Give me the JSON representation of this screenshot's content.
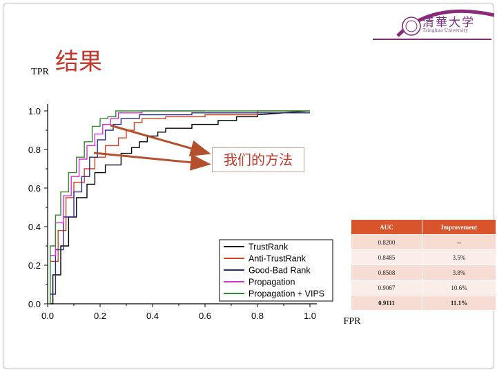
{
  "slide": {
    "title": "结果",
    "logo_cn": "清華大学",
    "logo_en": "Tsinghua University",
    "callout": "我们的方法"
  },
  "chart_data": {
    "type": "line",
    "xlabel": "FPR",
    "ylabel": "TPR",
    "xlim": [
      0,
      1.0
    ],
    "ylim": [
      0,
      1.0
    ],
    "xticks": [
      "0.0",
      "0.2",
      "0.4",
      "0.6",
      "0.8",
      "1.0"
    ],
    "yticks": [
      "0.0",
      "0.2",
      "0.4",
      "0.6",
      "0.8",
      "1.0"
    ],
    "legend_position": "bottom-right",
    "series": [
      {
        "name": "TrustRank",
        "color": "#000000",
        "x": [
          0,
          0.02,
          0.02,
          0.05,
          0.05,
          0.08,
          0.08,
          0.11,
          0.11,
          0.15,
          0.15,
          0.18,
          0.18,
          0.22,
          0.22,
          0.28,
          0.28,
          0.32,
          0.32,
          0.35,
          0.35,
          0.38,
          0.38,
          0.42,
          0.42,
          0.45,
          0.45,
          0.55,
          0.55,
          0.65,
          0.65,
          0.72,
          0.72,
          0.8,
          0.8,
          1.0
        ],
        "y": [
          0,
          0,
          0.15,
          0.15,
          0.3,
          0.3,
          0.45,
          0.45,
          0.55,
          0.55,
          0.62,
          0.62,
          0.68,
          0.68,
          0.72,
          0.72,
          0.78,
          0.78,
          0.81,
          0.81,
          0.84,
          0.84,
          0.87,
          0.87,
          0.89,
          0.89,
          0.91,
          0.91,
          0.93,
          0.93,
          0.95,
          0.95,
          0.97,
          0.97,
          0.98,
          1.0
        ]
      },
      {
        "name": "Anti-TrustRank",
        "color": "#d4401f",
        "x": [
          0,
          0.01,
          0.01,
          0.04,
          0.04,
          0.07,
          0.07,
          0.1,
          0.1,
          0.14,
          0.14,
          0.18,
          0.18,
          0.22,
          0.22,
          0.27,
          0.27,
          0.3,
          0.3,
          0.33,
          0.33,
          0.36,
          0.36,
          0.45,
          0.45,
          0.6,
          0.6,
          0.8,
          0.8,
          1.0
        ],
        "y": [
          0,
          0,
          0.22,
          0.22,
          0.38,
          0.38,
          0.55,
          0.55,
          0.63,
          0.63,
          0.7,
          0.7,
          0.76,
          0.76,
          0.82,
          0.82,
          0.86,
          0.86,
          0.9,
          0.9,
          0.94,
          0.94,
          0.96,
          0.96,
          0.97,
          0.97,
          0.98,
          0.98,
          1.0,
          1.0
        ]
      },
      {
        "name": "Good-Bad Rank",
        "color": "#2a2a8a",
        "x": [
          0,
          0.01,
          0.01,
          0.03,
          0.03,
          0.06,
          0.06,
          0.1,
          0.1,
          0.13,
          0.13,
          0.16,
          0.16,
          0.19,
          0.19,
          0.22,
          0.22,
          0.25,
          0.25,
          0.28,
          0.28,
          0.35,
          0.35,
          0.55,
          0.55,
          1.0
        ],
        "y": [
          0,
          0,
          0.05,
          0.05,
          0.28,
          0.28,
          0.45,
          0.45,
          0.58,
          0.58,
          0.66,
          0.66,
          0.76,
          0.76,
          0.85,
          0.85,
          0.9,
          0.9,
          0.93,
          0.93,
          0.96,
          0.96,
          0.98,
          0.98,
          0.99,
          0.99
        ]
      },
      {
        "name": "Propagation",
        "color": "#d42fd4",
        "x": [
          0,
          0.01,
          0.01,
          0.03,
          0.03,
          0.06,
          0.06,
          0.09,
          0.09,
          0.12,
          0.12,
          0.15,
          0.15,
          0.18,
          0.18,
          0.21,
          0.21,
          0.24,
          0.24,
          0.27,
          0.27,
          0.36,
          0.36,
          0.6,
          0.6
        ],
        "y": [
          0,
          0,
          0.25,
          0.25,
          0.42,
          0.42,
          0.56,
          0.56,
          0.66,
          0.66,
          0.75,
          0.75,
          0.82,
          0.82,
          0.88,
          0.88,
          0.93,
          0.93,
          0.96,
          0.96,
          0.99,
          0.99,
          1.0,
          1.0,
          1.0
        ]
      },
      {
        "name": "Propagation + VIPS",
        "color": "#2e8b2e",
        "x": [
          0,
          0.01,
          0.01,
          0.03,
          0.03,
          0.05,
          0.05,
          0.08,
          0.08,
          0.11,
          0.11,
          0.14,
          0.14,
          0.17,
          0.17,
          0.2,
          0.2,
          0.23,
          0.23,
          0.26,
          0.26,
          0.5,
          0.5,
          1.0
        ],
        "y": [
          0,
          0,
          0.3,
          0.3,
          0.46,
          0.46,
          0.58,
          0.58,
          0.68,
          0.68,
          0.76,
          0.76,
          0.84,
          0.84,
          0.92,
          0.92,
          0.96,
          0.96,
          0.97,
          0.97,
          1.0,
          1.0,
          1.0,
          1.0
        ]
      }
    ],
    "annotations": [
      "我们的方法"
    ]
  },
  "auc_table": {
    "headers": [
      "AUC",
      "Improvement"
    ],
    "rows": [
      [
        "0.8200",
        "--"
      ],
      [
        "0.8485",
        "3.5%"
      ],
      [
        "0.8508",
        "3.8%"
      ],
      [
        "0.9067",
        "10.6%"
      ],
      [
        "0.9111",
        "11.1%"
      ]
    ]
  }
}
